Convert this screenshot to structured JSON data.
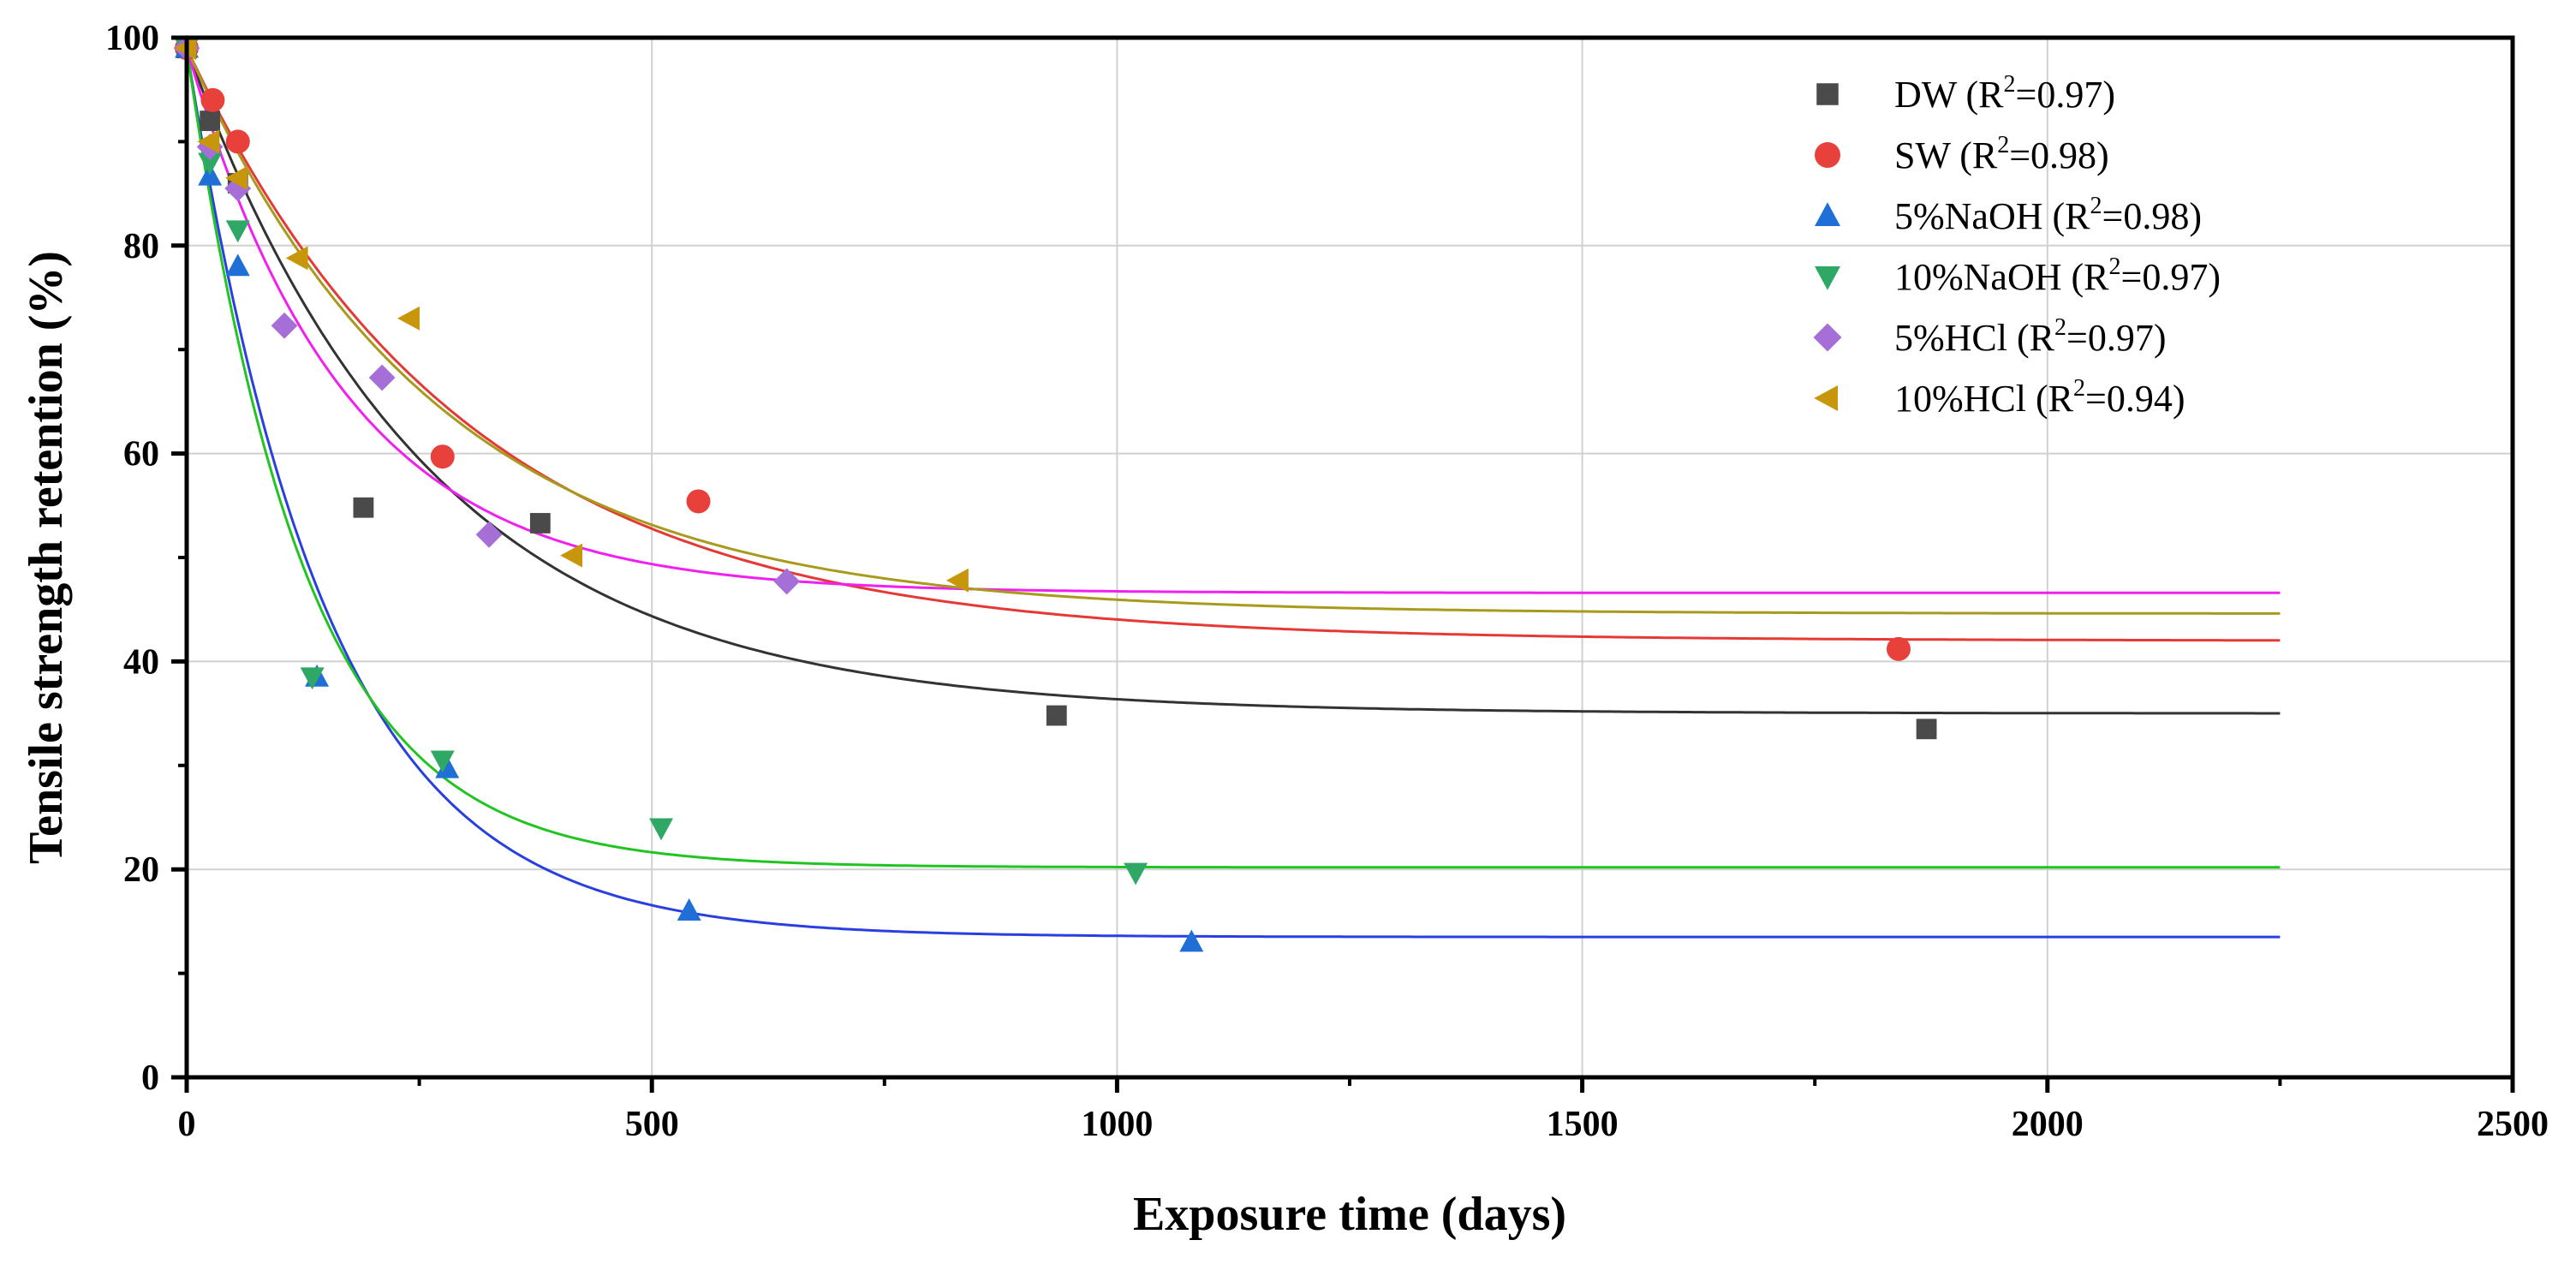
{
  "chart_data": {
    "type": "scatter",
    "title": "",
    "xlabel": "Exposure time (days)",
    "ylabel": "Tensile strength retention (%)",
    "xlim": [
      0,
      2500
    ],
    "ylim": [
      0,
      100
    ],
    "xticks": [
      0,
      500,
      1000,
      1500,
      2000,
      2500
    ],
    "yticks": [
      0,
      20,
      40,
      60,
      80,
      100
    ],
    "grid": true,
    "legend_position": "top-right",
    "series": [
      {
        "name": "DW",
        "r2_label": "(R",
        "r2_value": "=0.97)",
        "sup": "2",
        "marker": "square",
        "color": "#4a4a4a",
        "fit_color": "#333333",
        "points": [
          [
            0,
            99
          ],
          [
            25,
            92
          ],
          [
            55,
            86
          ],
          [
            190,
            54.8
          ],
          [
            380,
            53.3
          ],
          [
            935,
            34.8
          ],
          [
            1870,
            33.5
          ]
        ],
        "fit": {
          "a": 35,
          "b": 64,
          "tau": 260
        }
      },
      {
        "name": "SW",
        "r2_label": "(R",
        "r2_value": "=0.98)",
        "sup": "2",
        "marker": "circle",
        "color": "#e8403a",
        "fit_color": "#e53935",
        "points": [
          [
            0,
            99
          ],
          [
            28,
            94
          ],
          [
            55,
            90
          ],
          [
            275,
            59.7
          ],
          [
            550,
            55.4
          ],
          [
            1840,
            41.2
          ]
        ],
        "fit": {
          "a": 42,
          "b": 57,
          "tau": 300
        }
      },
      {
        "name": "5%NaOH",
        "r2_label": "(R",
        "r2_value": "=0.98)",
        "sup": "2",
        "marker": "triangle-up",
        "color": "#1f6fd6",
        "fit_color": "#2a3fe0",
        "points": [
          [
            0,
            99
          ],
          [
            25,
            86.7
          ],
          [
            55,
            78
          ],
          [
            140,
            38.5
          ],
          [
            280,
            29.7
          ],
          [
            540,
            16
          ],
          [
            1080,
            13
          ]
        ],
        "fit": {
          "a": 13.5,
          "b": 85.5,
          "tau": 150
        }
      },
      {
        "name": "10%NaOH",
        "r2_label": "(R",
        "r2_value": "=0.97)",
        "sup": "2",
        "marker": "triangle-down",
        "color": "#2fa866",
        "fit_color": "#21c421",
        "points": [
          [
            0,
            99
          ],
          [
            25,
            88
          ],
          [
            55,
            81.5
          ],
          [
            135,
            38.5
          ],
          [
            275,
            30.5
          ],
          [
            510,
            24
          ],
          [
            1020,
            19.7
          ]
        ],
        "fit": {
          "a": 20.2,
          "b": 78.8,
          "tau": 125
        }
      },
      {
        "name": "5%HCl",
        "r2_label": "(R",
        "r2_value": "=0.97)",
        "sup": "2",
        "marker": "diamond",
        "color": "#a66fd8",
        "fit_color": "#f020ef",
        "points": [
          [
            0,
            99
          ],
          [
            25,
            89.5
          ],
          [
            55,
            85.5
          ],
          [
            105,
            72.3
          ],
          [
            210,
            67.3
          ],
          [
            325,
            52.2
          ],
          [
            645,
            47.7
          ]
        ],
        "fit": {
          "a": 46.6,
          "b": 52.4,
          "tau": 170
        }
      },
      {
        "name": "10%HCl",
        "r2_label": "(R",
        "r2_value": "=0.94)",
        "sup": "2",
        "marker": "triangle-left",
        "color": "#c8960a",
        "fit_color": "#a89a1c",
        "points": [
          [
            0,
            99
          ],
          [
            25,
            90
          ],
          [
            55,
            86.5
          ],
          [
            120,
            78.8
          ],
          [
            240,
            73
          ],
          [
            415,
            50.2
          ],
          [
            830,
            47.8
          ]
        ],
        "fit": {
          "a": 44.6,
          "b": 54.4,
          "tau": 270
        }
      }
    ]
  }
}
